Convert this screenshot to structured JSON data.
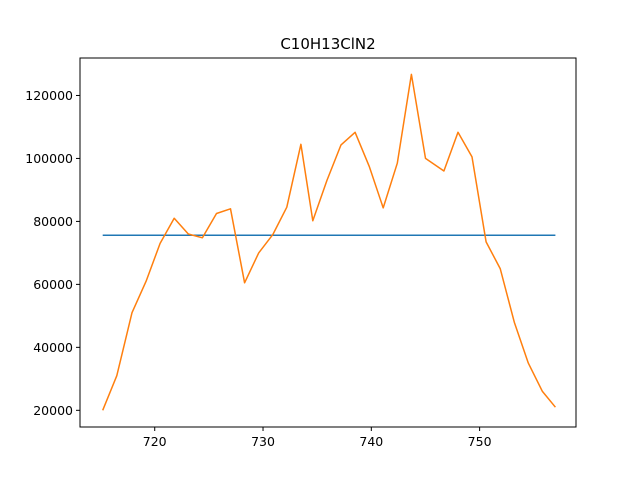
{
  "chart_data": {
    "type": "line",
    "title": "C10H13ClN2",
    "xlabel": "",
    "ylabel": "",
    "xlim": [
      713.1,
      758.9
    ],
    "ylim": [
      14700,
      131900
    ],
    "xticks": [
      720,
      730,
      740,
      750
    ],
    "yticks": [
      20000,
      40000,
      60000,
      80000,
      100000,
      120000
    ],
    "grid": false,
    "legend": "none",
    "series": [
      {
        "color": "#1f77b4",
        "x": [
          715.2,
          757.0
        ],
        "y": [
          75600,
          75600
        ]
      },
      {
        "color": "#ff7f0e",
        "x": [
          715.2,
          716.5,
          717.9,
          719.2,
          720.5,
          721.8,
          723.1,
          724.4,
          725.7,
          727.0,
          728.3,
          729.6,
          730.9,
          732.2,
          733.5,
          734.6,
          735.9,
          737.2,
          738.5,
          739.8,
          741.1,
          742.4,
          743.7,
          745.0,
          746.7,
          748.0,
          749.3,
          750.6,
          751.9,
          753.2,
          754.5,
          755.8,
          757.0
        ],
        "y": [
          20000,
          31000,
          51000,
          61000,
          73000,
          81000,
          76000,
          74800,
          82500,
          84000,
          60500,
          70000,
          75800,
          84500,
          104500,
          80200,
          93000,
          104300,
          108300,
          97500,
          84300,
          98500,
          126700,
          100000,
          96000,
          108300,
          100500,
          73500,
          65000,
          48000,
          35000,
          26000,
          21000
        ]
      }
    ]
  }
}
